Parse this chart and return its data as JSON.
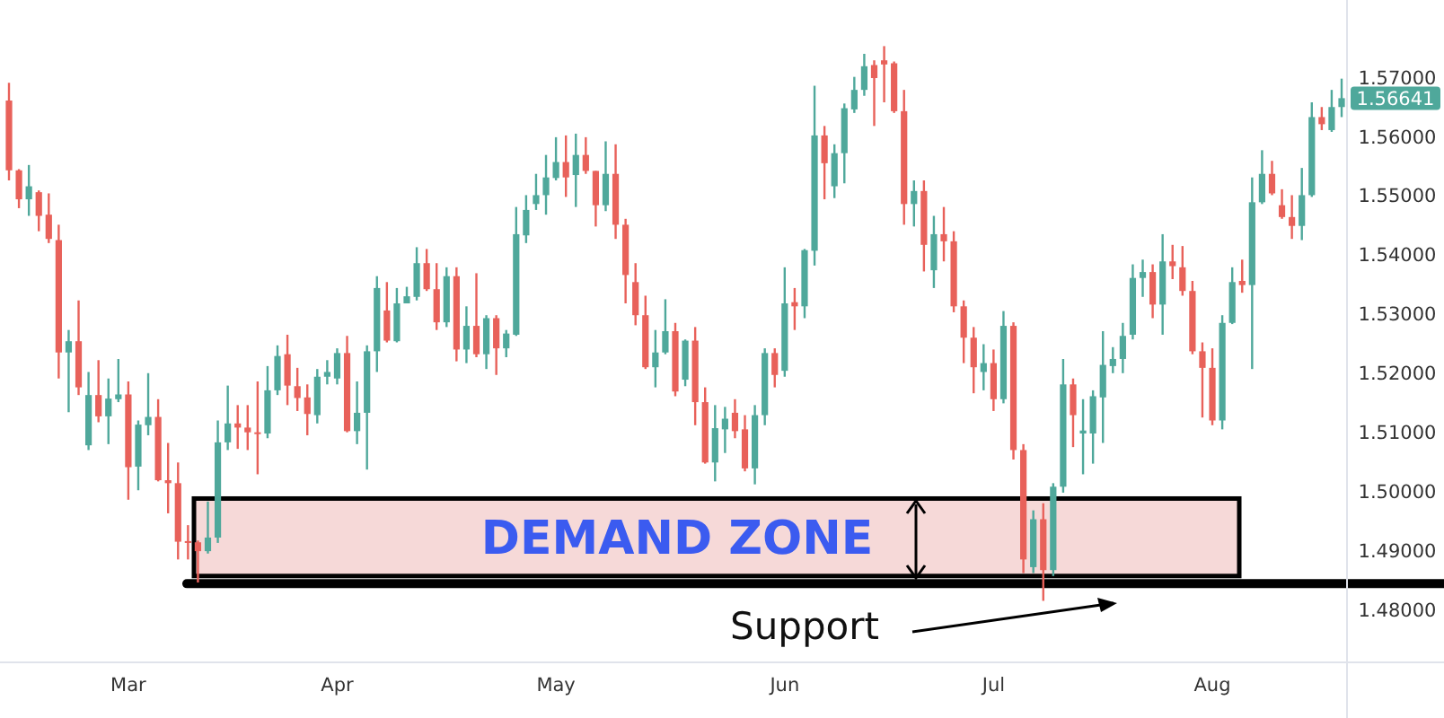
{
  "chart_data": {
    "type": "candlestick",
    "categories": [
      null,
      null,
      null,
      null,
      null,
      null,
      null,
      null,
      null,
      null,
      null,
      null,
      "Mar",
      null,
      null,
      null,
      null,
      null,
      null,
      null,
      null,
      null,
      null,
      null,
      null,
      null,
      null,
      null,
      null,
      null,
      null,
      null,
      null,
      "Apr",
      null,
      null,
      null,
      null,
      null,
      null,
      null,
      null,
      null,
      null,
      null,
      null,
      null,
      null,
      null,
      null,
      null,
      null,
      null,
      null,
      null,
      "May",
      null,
      null,
      null,
      null,
      null,
      null,
      null,
      null,
      null,
      null,
      null,
      null,
      null,
      null,
      null,
      null,
      null,
      null,
      null,
      null,
      null,
      null,
      "Jun",
      null,
      null,
      null,
      null,
      null,
      null,
      null,
      null,
      null,
      null,
      null,
      null,
      null,
      null,
      null,
      null,
      null,
      null,
      null,
      null,
      "Jul",
      null,
      null,
      null,
      null,
      null,
      null,
      null,
      null,
      null,
      null,
      null,
      null,
      null,
      null,
      null,
      null,
      null,
      null,
      null,
      null,
      null,
      "Aug",
      null,
      null,
      null,
      null,
      null,
      null,
      null,
      null,
      null,
      null,
      null,
      null,
      null
    ],
    "ohlc": [
      [
        1.566,
        1.569,
        1.5525,
        1.5542
      ],
      [
        1.5542,
        1.5544,
        1.5478,
        1.5493
      ],
      [
        1.5493,
        1.5551,
        1.5465,
        1.5515
      ],
      [
        1.5505,
        1.5508,
        1.5439,
        1.5465
      ],
      [
        1.5467,
        1.5503,
        1.5419,
        1.5426
      ],
      [
        1.5424,
        1.545,
        1.519,
        1.5234
      ],
      [
        1.5234,
        1.5272,
        1.5133,
        1.5253
      ],
      [
        1.5253,
        1.5322,
        1.5162,
        1.5175
      ],
      [
        1.5077,
        1.5201,
        1.5069,
        1.5162
      ],
      [
        1.5162,
        1.5221,
        1.5116,
        1.5126
      ],
      [
        1.5126,
        1.519,
        1.5079,
        1.5156
      ],
      [
        1.5155,
        1.5223,
        1.515,
        1.5163
      ],
      [
        1.5163,
        1.5185,
        1.4985,
        1.504
      ],
      [
        1.5041,
        1.5119,
        1.5001,
        1.5112
      ],
      [
        1.5111,
        1.5199,
        1.5094,
        1.5125
      ],
      [
        1.5125,
        1.5155,
        1.5016,
        1.5018
      ],
      [
        1.5018,
        1.5081,
        1.4962,
        1.5013
      ],
      [
        1.5013,
        1.5048,
        1.4884,
        1.4914
      ],
      [
        1.4915,
        1.4942,
        1.4884,
        1.4912
      ],
      [
        1.4913,
        1.4916,
        1.4845,
        1.4898
      ],
      [
        1.4898,
        1.4982,
        1.4894,
        1.4921
      ],
      [
        1.4921,
        1.5119,
        1.4912,
        1.5082
      ],
      [
        1.5082,
        1.5178,
        1.5069,
        1.5114
      ],
      [
        1.5114,
        1.5145,
        1.5071,
        1.5107
      ],
      [
        1.5107,
        1.5145,
        1.5069,
        1.5099
      ],
      [
        1.5099,
        1.5185,
        1.5028,
        1.5096
      ],
      [
        1.5097,
        1.5211,
        1.5089,
        1.517
      ],
      [
        1.517,
        1.5246,
        1.5162,
        1.5228
      ],
      [
        1.5231,
        1.5264,
        1.5145,
        1.5178
      ],
      [
        1.5177,
        1.5208,
        1.5135,
        1.5157
      ],
      [
        1.5158,
        1.518,
        1.5094,
        1.513
      ],
      [
        1.5128,
        1.5206,
        1.5114,
        1.5193
      ],
      [
        1.5193,
        1.5221,
        1.518,
        1.5201
      ],
      [
        1.519,
        1.5241,
        1.518,
        1.5233
      ],
      [
        1.5233,
        1.5262,
        1.5099,
        1.5101
      ],
      [
        1.5101,
        1.5185,
        1.5079,
        1.5132
      ],
      [
        1.5132,
        1.5246,
        1.5036,
        1.5236
      ],
      [
        1.5236,
        1.5363,
        1.5201,
        1.5343
      ],
      [
        1.5305,
        1.5353,
        1.5251,
        1.5254
      ],
      [
        1.5253,
        1.5343,
        1.5251,
        1.5317
      ],
      [
        1.5317,
        1.5345,
        1.5317,
        1.5329
      ],
      [
        1.5328,
        1.5412,
        1.5322,
        1.5385
      ],
      [
        1.5385,
        1.5409,
        1.5338,
        1.5341
      ],
      [
        1.5341,
        1.5385,
        1.5272,
        1.5285
      ],
      [
        1.5285,
        1.5378,
        1.5277,
        1.5363
      ],
      [
        1.5363,
        1.5378,
        1.5219,
        1.5239
      ],
      [
        1.5239,
        1.5312,
        1.5216,
        1.5279
      ],
      [
        1.5279,
        1.5368,
        1.5226,
        1.5231
      ],
      [
        1.5231,
        1.5297,
        1.5206,
        1.5292
      ],
      [
        1.5292,
        1.5297,
        1.5196,
        1.5241
      ],
      [
        1.5241,
        1.5272,
        1.5226,
        1.5266
      ],
      [
        1.5264,
        1.548,
        1.5262,
        1.5434
      ],
      [
        1.5432,
        1.55,
        1.5419,
        1.5475
      ],
      [
        1.5485,
        1.5536,
        1.5475,
        1.55
      ],
      [
        1.55,
        1.5568,
        1.5467,
        1.553
      ],
      [
        1.5529,
        1.5598,
        1.5525,
        1.5556
      ],
      [
        1.5556,
        1.5601,
        1.5497,
        1.553
      ],
      [
        1.5534,
        1.5604,
        1.548,
        1.5568
      ],
      [
        1.5568,
        1.5598,
        1.5536,
        1.5541
      ],
      [
        1.5541,
        1.5541,
        1.5447,
        1.5483
      ],
      [
        1.5483,
        1.5591,
        1.5473,
        1.5536
      ],
      [
        1.5536,
        1.5586,
        1.5426,
        1.545
      ],
      [
        1.545,
        1.546,
        1.5317,
        1.5365
      ],
      [
        1.5353,
        1.5385,
        1.528,
        1.5297
      ],
      [
        1.5297,
        1.533,
        1.5206,
        1.5209
      ],
      [
        1.5209,
        1.5272,
        1.5175,
        1.5234
      ],
      [
        1.5234,
        1.5324,
        1.5231,
        1.527
      ],
      [
        1.527,
        1.5284,
        1.516,
        1.5168
      ],
      [
        1.5188,
        1.5256,
        1.5177,
        1.5254
      ],
      [
        1.5254,
        1.5277,
        1.5111,
        1.515
      ],
      [
        1.515,
        1.5175,
        1.5046,
        1.5048
      ],
      [
        1.5048,
        1.5145,
        1.5016,
        1.5106
      ],
      [
        1.5104,
        1.5142,
        1.5064,
        1.5122
      ],
      [
        1.5132,
        1.5155,
        1.5089,
        1.5101
      ],
      [
        1.5104,
        1.5128,
        1.5033,
        1.5038
      ],
      [
        1.5038,
        1.5145,
        1.5011,
        1.5128
      ],
      [
        1.5128,
        1.5241,
        1.5111,
        1.5233
      ],
      [
        1.5233,
        1.5241,
        1.5175,
        1.5196
      ],
      [
        1.5203,
        1.5378,
        1.5193,
        1.5317
      ],
      [
        1.5319,
        1.5343,
        1.5272,
        1.5312
      ],
      [
        1.5312,
        1.5409,
        1.5292,
        1.5407
      ],
      [
        1.5406,
        1.5685,
        1.5381,
        1.5601
      ],
      [
        1.5601,
        1.5617,
        1.5493,
        1.5554
      ],
      [
        1.5515,
        1.5586,
        1.5495,
        1.5571
      ],
      [
        1.5571,
        1.5655,
        1.552,
        1.5647
      ],
      [
        1.5645,
        1.57,
        1.5639,
        1.5678
      ],
      [
        1.5678,
        1.5739,
        1.5668,
        1.5718
      ],
      [
        1.572,
        1.5728,
        1.5617,
        1.5698
      ],
      [
        1.5728,
        1.5752,
        1.5657,
        1.5721
      ],
      [
        1.5723,
        1.5726,
        1.5639,
        1.5642
      ],
      [
        1.5642,
        1.5678,
        1.545,
        1.5485
      ],
      [
        1.5485,
        1.5525,
        1.5447,
        1.5507
      ],
      [
        1.5507,
        1.5525,
        1.5371,
        1.5416
      ],
      [
        1.5373,
        1.5465,
        1.5343,
        1.5434
      ],
      [
        1.5434,
        1.548,
        1.5388,
        1.5422
      ],
      [
        1.5422,
        1.5439,
        1.5302,
        1.5312
      ],
      [
        1.5312,
        1.5322,
        1.5216,
        1.5259
      ],
      [
        1.5259,
        1.5277,
        1.5165,
        1.5209
      ],
      [
        1.5201,
        1.5248,
        1.517,
        1.5216
      ],
      [
        1.5216,
        1.5239,
        1.5135,
        1.5155
      ],
      [
        1.5155,
        1.5304,
        1.5148,
        1.5279
      ],
      [
        1.5279,
        1.5285,
        1.5053,
        1.5069
      ],
      [
        1.5069,
        1.5079,
        1.4861,
        1.4884
      ],
      [
        1.4871,
        1.4967,
        1.4861,
        1.4952
      ],
      [
        1.4952,
        1.4979,
        1.4814,
        1.4866
      ],
      [
        1.4866,
        1.5013,
        1.4856,
        1.5007
      ],
      [
        1.5007,
        1.5223,
        1.4997,
        1.518
      ],
      [
        1.518,
        1.519,
        1.5074,
        1.5128
      ],
      [
        1.5097,
        1.5155,
        1.5028,
        1.5102
      ],
      [
        1.5097,
        1.517,
        1.5046,
        1.516
      ],
      [
        1.5158,
        1.527,
        1.5081,
        1.5213
      ],
      [
        1.5211,
        1.5243,
        1.5199,
        1.5223
      ],
      [
        1.5223,
        1.5284,
        1.5199,
        1.5262
      ],
      [
        1.5264,
        1.5383,
        1.5256,
        1.536
      ],
      [
        1.536,
        1.5391,
        1.5328,
        1.537
      ],
      [
        1.537,
        1.5383,
        1.5292,
        1.5315
      ],
      [
        1.5315,
        1.5434,
        1.5264,
        1.5388
      ],
      [
        1.5388,
        1.5416,
        1.5358,
        1.538
      ],
      [
        1.5378,
        1.5414,
        1.533,
        1.5338
      ],
      [
        1.5338,
        1.5355,
        1.5231,
        1.5236
      ],
      [
        1.5236,
        1.5251,
        1.5124,
        1.5208
      ],
      [
        1.5208,
        1.5241,
        1.5111,
        1.5119
      ],
      [
        1.5119,
        1.5297,
        1.5104,
        1.5284
      ],
      [
        1.5284,
        1.5378,
        1.5282,
        1.5353
      ],
      [
        1.5355,
        1.5391,
        1.5335,
        1.5348
      ],
      [
        1.5348,
        1.553,
        1.5206,
        1.5488
      ],
      [
        1.5488,
        1.5576,
        1.5485,
        1.5536
      ],
      [
        1.5536,
        1.5558,
        1.55,
        1.5503
      ],
      [
        1.5483,
        1.551,
        1.546,
        1.5463
      ],
      [
        1.5463,
        1.55,
        1.5426,
        1.5448
      ],
      [
        1.5448,
        1.5546,
        1.5424,
        1.55
      ],
      [
        1.55,
        1.5657,
        1.5497,
        1.5632
      ],
      [
        1.5632,
        1.5649,
        1.561,
        1.562
      ],
      [
        1.561,
        1.5678,
        1.5607,
        1.5649
      ],
      [
        1.5649,
        1.5697,
        1.5632,
        1.5664
      ]
    ],
    "ylim": [
      1.471,
      1.583
    ],
    "yticks": [
      {
        "value": 1.48,
        "label": "1.48000"
      },
      {
        "value": 1.49,
        "label": "1.49000"
      },
      {
        "value": 1.5,
        "label": "1.50000"
      },
      {
        "value": 1.51,
        "label": "1.51000"
      },
      {
        "value": 1.52,
        "label": "1.52000"
      },
      {
        "value": 1.53,
        "label": "1.53000"
      },
      {
        "value": 1.54,
        "label": "1.54000"
      },
      {
        "value": 1.55,
        "label": "1.55000"
      },
      {
        "value": 1.56,
        "label": "1.56000"
      },
      {
        "value": 1.57,
        "label": "1.57000"
      }
    ],
    "bands": [
      {
        "axis": "y",
        "from": 1.4856,
        "to": 1.4987,
        "label": "DEMAND ZONE",
        "color": "#f6d9d8"
      }
    ],
    "ref_lines": [
      {
        "axis": "y",
        "value": 1.4843,
        "label": "Support",
        "color": "#000000",
        "line_style": "solid"
      }
    ],
    "annotations": [
      "1.56641"
    ],
    "grid": false
  }
}
